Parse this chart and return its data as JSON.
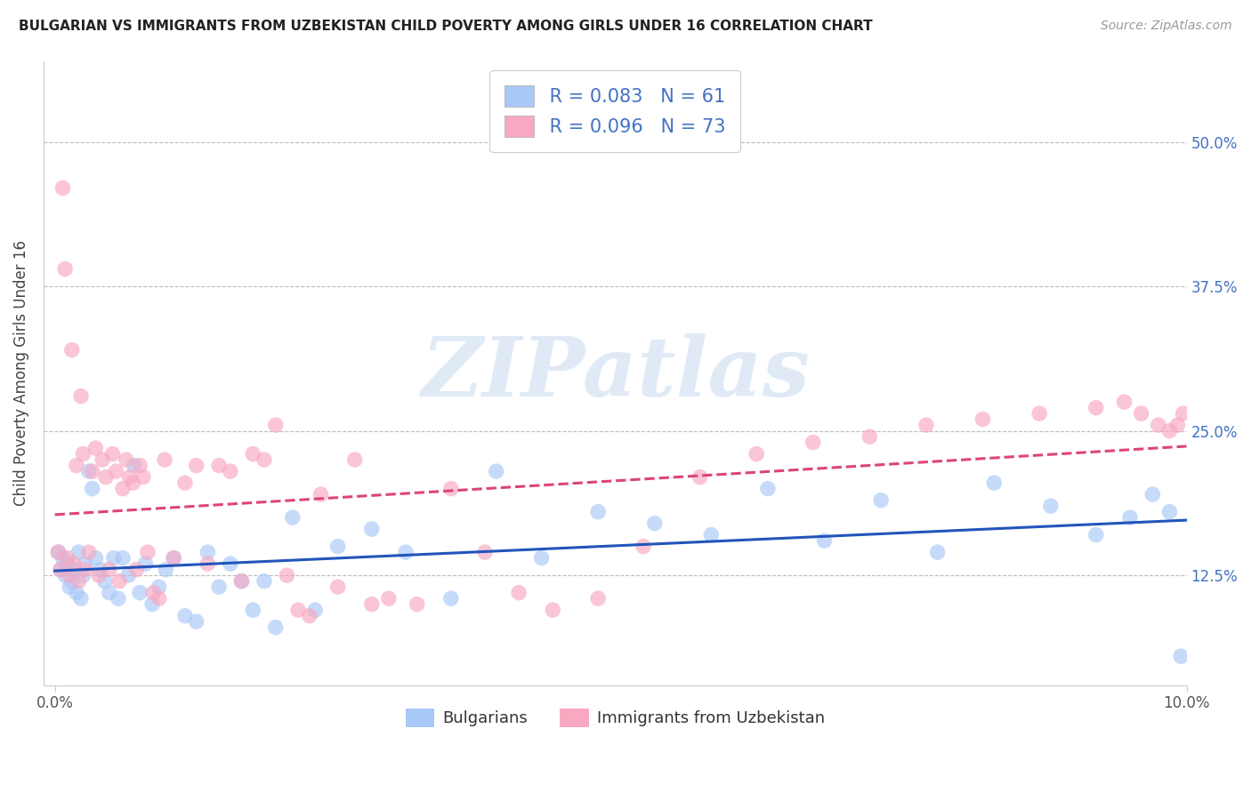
{
  "title": "BULGARIAN VS IMMIGRANTS FROM UZBEKISTAN CHILD POVERTY AMONG GIRLS UNDER 16 CORRELATION CHART",
  "source": "Source: ZipAtlas.com",
  "ylabel": "Child Poverty Among Girls Under 16",
  "xlim_min": -0.1,
  "xlim_max": 10.0,
  "ylim_min": 3.0,
  "ylim_max": 57.0,
  "yticks": [
    12.5,
    25.0,
    37.5,
    50.0
  ],
  "blue_R": 0.083,
  "blue_N": 61,
  "pink_R": 0.096,
  "pink_N": 73,
  "blue_color": "#a8c8f8",
  "pink_color": "#f8a8c0",
  "blue_line_color": "#2255bb",
  "pink_line_color": "#dd4477",
  "legend_label_blue": "Bulgarians",
  "legend_label_pink": "Immigrants from Uzbekistan",
  "watermark": "ZIPatlas",
  "blue_scatter_x": [
    0.03,
    0.05,
    0.07,
    0.09,
    0.11,
    0.13,
    0.15,
    0.17,
    0.19,
    0.21,
    0.23,
    0.25,
    0.27,
    0.3,
    0.33,
    0.36,
    0.4,
    0.44,
    0.48,
    0.52,
    0.56,
    0.6,
    0.65,
    0.7,
    0.75,
    0.8,
    0.86,
    0.92,
    0.98,
    1.05,
    1.15,
    1.25,
    1.35,
    1.45,
    1.55,
    1.65,
    1.75,
    1.85,
    1.95,
    2.1,
    2.3,
    2.5,
    2.8,
    3.1,
    3.5,
    3.9,
    4.3,
    4.8,
    5.3,
    5.8,
    6.3,
    6.8,
    7.3,
    7.8,
    8.3,
    8.8,
    9.2,
    9.5,
    9.7,
    9.85,
    9.95
  ],
  "blue_scatter_y": [
    14.5,
    13.0,
    14.0,
    12.5,
    13.5,
    11.5,
    12.0,
    13.0,
    11.0,
    14.5,
    10.5,
    12.5,
    13.5,
    21.5,
    20.0,
    14.0,
    13.0,
    12.0,
    11.0,
    14.0,
    10.5,
    14.0,
    12.5,
    22.0,
    11.0,
    13.5,
    10.0,
    11.5,
    13.0,
    14.0,
    9.0,
    8.5,
    14.5,
    11.5,
    13.5,
    12.0,
    9.5,
    12.0,
    8.0,
    17.5,
    9.5,
    15.0,
    16.5,
    14.5,
    10.5,
    21.5,
    14.0,
    18.0,
    17.0,
    16.0,
    20.0,
    15.5,
    19.0,
    14.5,
    20.5,
    18.5,
    16.0,
    17.5,
    19.5,
    18.0,
    5.5
  ],
  "pink_scatter_x": [
    0.03,
    0.05,
    0.07,
    0.09,
    0.11,
    0.13,
    0.15,
    0.17,
    0.19,
    0.21,
    0.23,
    0.25,
    0.27,
    0.3,
    0.33,
    0.36,
    0.39,
    0.42,
    0.45,
    0.48,
    0.51,
    0.54,
    0.57,
    0.6,
    0.63,
    0.66,
    0.69,
    0.72,
    0.75,
    0.78,
    0.82,
    0.87,
    0.92,
    0.97,
    1.05,
    1.15,
    1.25,
    1.35,
    1.45,
    1.55,
    1.65,
    1.75,
    1.85,
    1.95,
    2.05,
    2.15,
    2.25,
    2.35,
    2.5,
    2.65,
    2.8,
    2.95,
    3.2,
    3.5,
    3.8,
    4.1,
    4.4,
    4.8,
    5.2,
    5.7,
    6.2,
    6.7,
    7.2,
    7.7,
    8.2,
    8.7,
    9.2,
    9.45,
    9.6,
    9.75,
    9.85,
    9.92,
    9.97
  ],
  "pink_scatter_y": [
    14.5,
    13.0,
    46.0,
    39.0,
    14.0,
    12.5,
    32.0,
    13.5,
    22.0,
    12.0,
    28.0,
    23.0,
    13.0,
    14.5,
    21.5,
    23.5,
    12.5,
    22.5,
    21.0,
    13.0,
    23.0,
    21.5,
    12.0,
    20.0,
    22.5,
    21.0,
    20.5,
    13.0,
    22.0,
    21.0,
    14.5,
    11.0,
    10.5,
    22.5,
    14.0,
    20.5,
    22.0,
    13.5,
    22.0,
    21.5,
    12.0,
    23.0,
    22.5,
    25.5,
    12.5,
    9.5,
    9.0,
    19.5,
    11.5,
    22.5,
    10.0,
    10.5,
    10.0,
    20.0,
    14.5,
    11.0,
    9.5,
    10.5,
    15.0,
    21.0,
    23.0,
    24.0,
    24.5,
    25.5,
    26.0,
    26.5,
    27.0,
    27.5,
    26.5,
    25.5,
    25.0,
    25.5,
    26.5
  ]
}
